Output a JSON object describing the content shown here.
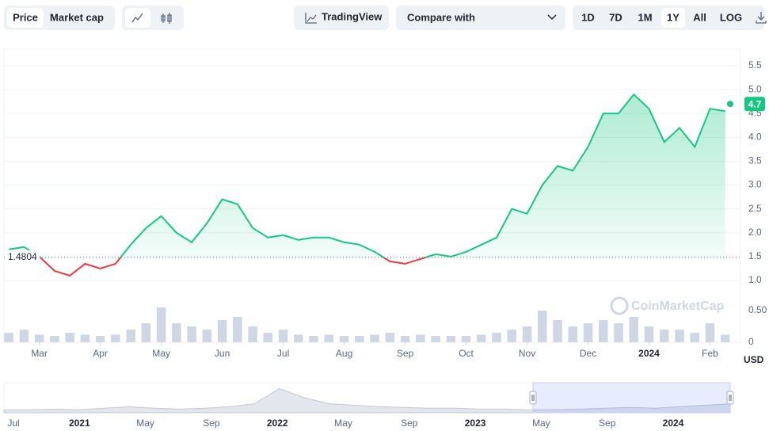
{
  "toolbar": {
    "view_tabs": [
      "Price",
      "Market cap"
    ],
    "tradingview": "TradingView",
    "compare": "Compare with",
    "ranges": [
      "1D",
      "7D",
      "1M",
      "1Y",
      "All",
      "LOG"
    ],
    "selected_range": "1Y"
  },
  "chart_data": {
    "type": "line",
    "x": [
      -0.5,
      -0.25,
      0,
      0.25,
      0.5,
      0.75,
      1,
      1.25,
      1.5,
      1.75,
      2,
      2.25,
      2.5,
      2.75,
      3,
      3.25,
      3.5,
      3.75,
      4,
      4.25,
      4.5,
      4.75,
      5,
      5.25,
      5.5,
      5.75,
      6,
      6.25,
      6.5,
      6.75,
      7,
      7.25,
      7.5,
      7.75,
      8,
      8.25,
      8.5,
      8.75,
      9,
      9.25,
      9.5,
      9.75,
      10,
      10.25,
      10.5,
      10.75,
      11,
      11.25
    ],
    "series": [
      {
        "color": "#16c784",
        "below_color": "#ea3943",
        "values": [
          1.65,
          1.7,
          1.5,
          1.2,
          1.1,
          1.35,
          1.25,
          1.35,
          1.75,
          2.1,
          2.35,
          2.0,
          1.8,
          2.2,
          2.7,
          2.6,
          2.1,
          1.9,
          1.95,
          1.85,
          1.9,
          1.9,
          1.8,
          1.75,
          1.6,
          1.4,
          1.35,
          1.45,
          1.55,
          1.5,
          1.6,
          1.75,
          1.9,
          2.5,
          2.4,
          3.0,
          3.4,
          3.3,
          3.8,
          4.5,
          4.5,
          4.9,
          4.6,
          3.9,
          4.2,
          3.8,
          4.6,
          4.55
        ]
      }
    ],
    "volume": {
      "color": "#cfd6e4",
      "values": [
        0.15,
        0.2,
        0.12,
        0.1,
        0.15,
        0.12,
        0.1,
        0.12,
        0.2,
        0.3,
        0.55,
        0.3,
        0.25,
        0.2,
        0.35,
        0.4,
        0.25,
        0.15,
        0.2,
        0.12,
        0.1,
        0.12,
        0.1,
        0.1,
        0.12,
        0.15,
        0.1,
        0.12,
        0.1,
        0.1,
        0.1,
        0.12,
        0.15,
        0.2,
        0.25,
        0.5,
        0.35,
        0.25,
        0.3,
        0.35,
        0.3,
        0.4,
        0.25,
        0.2,
        0.2,
        0.15,
        0.3,
        0.12
      ],
      "ylim": [
        0,
        0.75
      ],
      "yticks": [
        0,
        {
          "value": 0.5,
          "label": "0.50"
        }
      ]
    },
    "reference": 1.4804,
    "current_price": 4.7,
    "currency": "USD",
    "xlim": [
      -0.58,
      11.5
    ],
    "xticks": [
      {
        "value": 0,
        "label": "Mar"
      },
      {
        "value": 1,
        "label": "Apr"
      },
      {
        "value": 2,
        "label": "May"
      },
      {
        "value": 3,
        "label": "Jun"
      },
      {
        "value": 4,
        "label": "Jul"
      },
      {
        "value": 5,
        "label": "Aug"
      },
      {
        "value": 6,
        "label": "Sep"
      },
      {
        "value": 7,
        "label": "Oct"
      },
      {
        "value": 8,
        "label": "Nov"
      },
      {
        "value": 9,
        "label": "Dec"
      },
      {
        "value": 10,
        "label": "2024"
      },
      {
        "value": 11,
        "label": "Feb"
      }
    ],
    "ylim": [
      0.9,
      5.85
    ],
    "yticks": [
      {
        "value": 1,
        "label": "1.0"
      },
      1.5,
      {
        "value": 2,
        "label": "2.0"
      },
      2.5,
      {
        "value": 3,
        "label": "3.0"
      },
      3.5,
      {
        "value": 4,
        "label": "4.0"
      },
      4.5,
      {
        "value": 5,
        "label": "5.0"
      },
      5.5
    ],
    "grid": true,
    "watermark": "CoinMarketCap"
  },
  "navigator": {
    "labels": [
      "Jul",
      "2021",
      "May",
      "Sep",
      "2022",
      "May",
      "Sep",
      "2023",
      "May",
      "Sep",
      "2024"
    ],
    "ylim": [
      0,
      10
    ],
    "values": [
      1,
      1,
      1.2,
      1,
      1.5,
      2,
      1.5,
      1.2,
      1.5,
      2,
      3,
      8,
      5,
      3,
      2.5,
      2,
      1.8,
      1.5,
      1.5,
      1.2,
      1.2,
      1,
      1,
      1.2,
      1.5,
      1.8,
      1.5,
      2,
      2.5,
      3
    ]
  }
}
